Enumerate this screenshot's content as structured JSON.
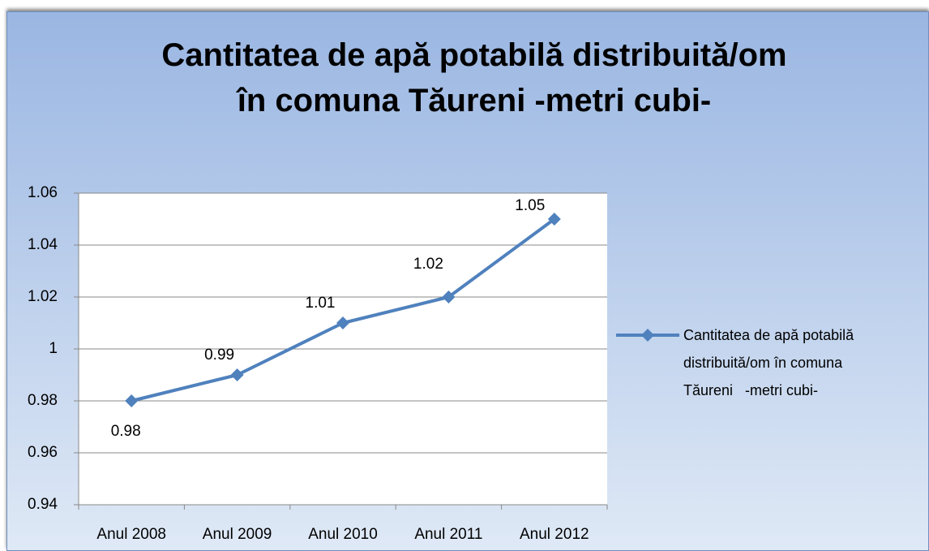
{
  "chart_data": {
    "type": "line",
    "title": "Cantitatea de apă potabilă distribuită/om în comuna Tăureni -metri cubi-",
    "categories": [
      "Anul 2008",
      "Anul 2009",
      "Anul 2010",
      "Anul 2011",
      "Anul 2012"
    ],
    "series": [
      {
        "name": "Cantitatea de apă potabilă distribuită/om în comuna Tăureni   -metri cubi-",
        "color": "#4f81bd",
        "values": [
          0.98,
          0.99,
          1.01,
          1.02,
          1.05
        ]
      }
    ],
    "ylim": [
      0.94,
      1.06
    ],
    "yticks": [
      0.94,
      0.96,
      0.98,
      1,
      1.02,
      1.04,
      1.06
    ],
    "grid": true,
    "legend": "right",
    "data_labels": true
  }
}
